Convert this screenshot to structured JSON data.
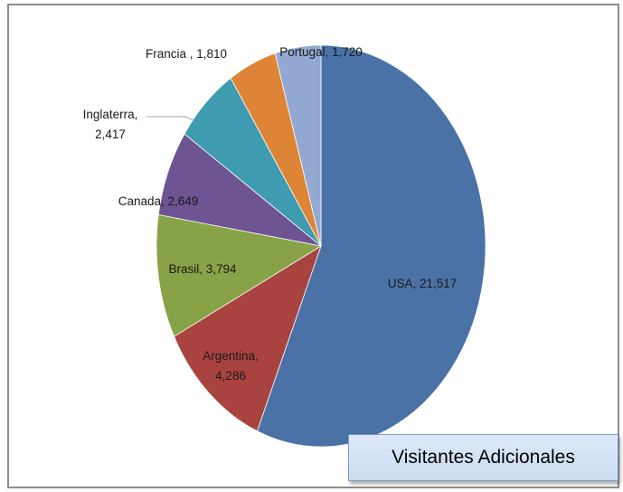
{
  "chart_data": {
    "type": "pie",
    "start": "top",
    "direction": "clockwise",
    "slices": [
      {
        "label": "USA",
        "value": 21517,
        "display": "USA,  21,517",
        "color": "#4a72a6"
      },
      {
        "label": "Argentina",
        "value": 4286,
        "display": "Argentina,\n4,286",
        "color": "#a9433f"
      },
      {
        "label": "Brasil",
        "value": 3794,
        "display": "Brasil,  3,794",
        "color": "#88a347"
      },
      {
        "label": "Canada",
        "value": 2649,
        "display": "Canada,  2,649",
        "color": "#6e5492"
      },
      {
        "label": "Inglaterra",
        "value": 2417,
        "display": "Inglaterra,\n2,417",
        "color": "#3f9bb0"
      },
      {
        "label": "Francia",
        "value": 1810,
        "display": "Francia ,  1,810",
        "color": "#de8436"
      },
      {
        "label": "Portugal",
        "value": 1720,
        "display": "Portugal,  1,720",
        "color": "#93a9d2"
      }
    ]
  },
  "caption": "Visitantes Adicionales"
}
